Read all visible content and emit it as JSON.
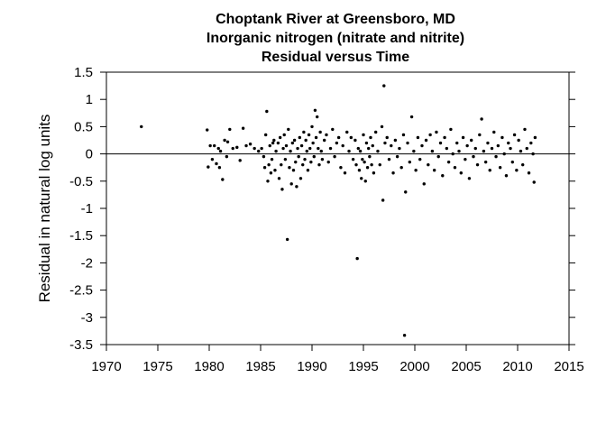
{
  "chart_data": {
    "type": "scatter",
    "title": "Choptank River at Greensboro, MD",
    "subtitle": "Inorganic nitrogen (nitrate and nitrite)",
    "subtitle2": "Residual versus Time",
    "xlabel": "",
    "ylabel": "Residual in natural log units",
    "xlim": [
      1970,
      2015
    ],
    "ylim": [
      -3.5,
      1.5
    ],
    "xticks": [
      "1970",
      "1975",
      "1980",
      "1985",
      "1990",
      "1995",
      "2000",
      "2005",
      "2010",
      "2015"
    ],
    "yticks": [
      "1.5",
      "1",
      "0.5",
      "0",
      "-0.5",
      "-1",
      "-1.5",
      "-2",
      "-2.5",
      "-3",
      "-3.5"
    ],
    "reference_line_y": 0,
    "grid": false,
    "marker_color": "#000000",
    "points": [
      [
        1973.4,
        0.5
      ],
      [
        1979.8,
        0.44
      ],
      [
        1979.9,
        -0.24
      ],
      [
        1980.1,
        0.15
      ],
      [
        1980.3,
        -0.1
      ],
      [
        1980.5,
        0.15
      ],
      [
        1980.7,
        -0.18
      ],
      [
        1980.9,
        0.1
      ],
      [
        1981.0,
        -0.25
      ],
      [
        1981.1,
        0.05
      ],
      [
        1981.3,
        -0.47
      ],
      [
        1981.5,
        0.25
      ],
      [
        1981.7,
        -0.05
      ],
      [
        1981.8,
        0.22
      ],
      [
        1982.0,
        0.45
      ],
      [
        1982.3,
        0.1
      ],
      [
        1982.7,
        0.12
      ],
      [
        1983.0,
        -0.12
      ],
      [
        1983.3,
        0.47
      ],
      [
        1983.6,
        0.15
      ],
      [
        1984.0,
        0.18
      ],
      [
        1984.4,
        0.1
      ],
      [
        1984.8,
        0.05
      ],
      [
        1985.1,
        0.1
      ],
      [
        1985.3,
        -0.05
      ],
      [
        1985.4,
        -0.25
      ],
      [
        1985.5,
        0.35
      ],
      [
        1985.6,
        0.78
      ],
      [
        1985.7,
        -0.5
      ],
      [
        1985.8,
        -0.2
      ],
      [
        1985.9,
        0.15
      ],
      [
        1986.0,
        -0.35
      ],
      [
        1986.1,
        -0.1
      ],
      [
        1986.2,
        0.2
      ],
      [
        1986.3,
        0.25
      ],
      [
        1986.4,
        -0.3
      ],
      [
        1986.5,
        0.05
      ],
      [
        1986.7,
        0.2
      ],
      [
        1986.8,
        -0.45
      ],
      [
        1986.9,
        0.3
      ],
      [
        1987.0,
        -0.2
      ],
      [
        1987.1,
        -0.65
      ],
      [
        1987.2,
        0.1
      ],
      [
        1987.3,
        0.35
      ],
      [
        1987.4,
        -0.1
      ],
      [
        1987.5,
        0.15
      ],
      [
        1987.6,
        -1.57
      ],
      [
        1987.7,
        0.45
      ],
      [
        1987.8,
        -0.25
      ],
      [
        1987.9,
        0.05
      ],
      [
        1988.0,
        -0.55
      ],
      [
        1988.1,
        0.2
      ],
      [
        1988.2,
        -0.3
      ],
      [
        1988.3,
        0.25
      ],
      [
        1988.4,
        -0.15
      ],
      [
        1988.5,
        -0.6
      ],
      [
        1988.6,
        0.1
      ],
      [
        1988.7,
        -0.05
      ],
      [
        1988.8,
        0.3
      ],
      [
        1988.9,
        -0.45
      ],
      [
        1989.0,
        0.15
      ],
      [
        1989.1,
        -0.2
      ],
      [
        1989.2,
        0.4
      ],
      [
        1989.3,
        -0.1
      ],
      [
        1989.4,
        0.25
      ],
      [
        1989.5,
        0.05
      ],
      [
        1989.6,
        -0.3
      ],
      [
        1989.7,
        0.35
      ],
      [
        1989.8,
        0.1
      ],
      [
        1989.9,
        -0.15
      ],
      [
        1990.0,
        0.5
      ],
      [
        1990.1,
        0.2
      ],
      [
        1990.2,
        -0.05
      ],
      [
        1990.3,
        0.8
      ],
      [
        1990.4,
        0.3
      ],
      [
        1990.5,
        0.68
      ],
      [
        1990.6,
        0.1
      ],
      [
        1990.7,
        -0.2
      ],
      [
        1990.8,
        0.4
      ],
      [
        1990.9,
        0.05
      ],
      [
        1991.0,
        -0.1
      ],
      [
        1991.2,
        0.25
      ],
      [
        1991.4,
        0.35
      ],
      [
        1991.6,
        -0.15
      ],
      [
        1991.8,
        0.1
      ],
      [
        1992.0,
        0.45
      ],
      [
        1992.2,
        -0.05
      ],
      [
        1992.4,
        0.2
      ],
      [
        1992.6,
        0.3
      ],
      [
        1992.8,
        -0.25
      ],
      [
        1993.0,
        0.15
      ],
      [
        1993.2,
        -0.35
      ],
      [
        1993.4,
        0.4
      ],
      [
        1993.6,
        0.05
      ],
      [
        1993.8,
        0.3
      ],
      [
        1994.0,
        -0.1
      ],
      [
        1994.2,
        0.25
      ],
      [
        1994.3,
        -0.2
      ],
      [
        1994.4,
        -1.92
      ],
      [
        1994.5,
        0.1
      ],
      [
        1994.6,
        -0.3
      ],
      [
        1994.7,
        0.05
      ],
      [
        1994.8,
        -0.45
      ],
      [
        1994.9,
        -0.1
      ],
      [
        1995.0,
        0.35
      ],
      [
        1995.1,
        -0.15
      ],
      [
        1995.2,
        -0.5
      ],
      [
        1995.3,
        0.2
      ],
      [
        1995.4,
        -0.25
      ],
      [
        1995.5,
        0.1
      ],
      [
        1995.6,
        -0.05
      ],
      [
        1995.7,
        0.3
      ],
      [
        1995.8,
        -0.2
      ],
      [
        1995.9,
        0.15
      ],
      [
        1996.0,
        -0.35
      ],
      [
        1996.2,
        0.4
      ],
      [
        1996.4,
        0.05
      ],
      [
        1996.6,
        -0.2
      ],
      [
        1996.8,
        0.5
      ],
      [
        1996.9,
        -0.85
      ],
      [
        1997.0,
        1.25
      ],
      [
        1997.1,
        0.2
      ],
      [
        1997.3,
        0.3
      ],
      [
        1997.5,
        -0.1
      ],
      [
        1997.7,
        0.15
      ],
      [
        1997.9,
        -0.35
      ],
      [
        1998.1,
        0.25
      ],
      [
        1998.3,
        -0.05
      ],
      [
        1998.5,
        0.1
      ],
      [
        1998.7,
        -0.25
      ],
      [
        1998.9,
        0.35
      ],
      [
        1999.0,
        -3.33
      ],
      [
        1999.1,
        -0.7
      ],
      [
        1999.3,
        0.2
      ],
      [
        1999.5,
        -0.15
      ],
      [
        1999.7,
        0.68
      ],
      [
        1999.9,
        0.05
      ],
      [
        2000.1,
        -0.3
      ],
      [
        2000.3,
        0.3
      ],
      [
        2000.5,
        -0.1
      ],
      [
        2000.7,
        0.15
      ],
      [
        2000.9,
        -0.55
      ],
      [
        2001.1,
        0.25
      ],
      [
        2001.3,
        -0.2
      ],
      [
        2001.5,
        0.35
      ],
      [
        2001.7,
        0.05
      ],
      [
        2001.9,
        -0.3
      ],
      [
        2002.1,
        0.4
      ],
      [
        2002.3,
        -0.05
      ],
      [
        2002.5,
        0.2
      ],
      [
        2002.7,
        -0.4
      ],
      [
        2002.9,
        0.3
      ],
      [
        2003.1,
        0.1
      ],
      [
        2003.3,
        -0.15
      ],
      [
        2003.5,
        0.45
      ],
      [
        2003.7,
        0.0
      ],
      [
        2003.9,
        -0.25
      ],
      [
        2004.1,
        0.2
      ],
      [
        2004.3,
        0.05
      ],
      [
        2004.5,
        -0.35
      ],
      [
        2004.7,
        0.3
      ],
      [
        2004.9,
        -0.1
      ],
      [
        2005.1,
        0.15
      ],
      [
        2005.3,
        -0.45
      ],
      [
        2005.5,
        0.25
      ],
      [
        2005.7,
        -0.05
      ],
      [
        2005.9,
        0.1
      ],
      [
        2006.1,
        -0.2
      ],
      [
        2006.3,
        0.35
      ],
      [
        2006.5,
        0.64
      ],
      [
        2006.7,
        0.05
      ],
      [
        2006.9,
        -0.15
      ],
      [
        2007.1,
        0.2
      ],
      [
        2007.3,
        -0.3
      ],
      [
        2007.5,
        0.1
      ],
      [
        2007.7,
        0.4
      ],
      [
        2007.9,
        -0.05
      ],
      [
        2008.1,
        0.15
      ],
      [
        2008.3,
        -0.25
      ],
      [
        2008.5,
        0.3
      ],
      [
        2008.7,
        0.0
      ],
      [
        2008.9,
        -0.4
      ],
      [
        2009.1,
        0.2
      ],
      [
        2009.3,
        0.1
      ],
      [
        2009.5,
        -0.15
      ],
      [
        2009.7,
        0.35
      ],
      [
        2009.9,
        -0.3
      ],
      [
        2010.1,
        0.25
      ],
      [
        2010.3,
        0.05
      ],
      [
        2010.5,
        -0.2
      ],
      [
        2010.7,
        0.45
      ],
      [
        2010.9,
        0.1
      ],
      [
        2011.1,
        -0.35
      ],
      [
        2011.3,
        0.2
      ],
      [
        2011.5,
        0.0
      ],
      [
        2011.6,
        -0.52
      ],
      [
        2011.7,
        0.3
      ]
    ]
  }
}
